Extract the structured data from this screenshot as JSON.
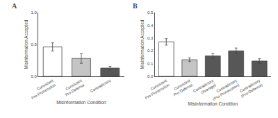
{
  "chart_data": [
    {
      "type": "bar",
      "title": "A",
      "categories": [
        "Consistent\nPro-Prosecution",
        "Consistent\nPro-Defense",
        "Contradictory"
      ],
      "values": [
        0.46,
        0.28,
        0.13
      ],
      "errors": [
        0.065,
        0.075,
        0.028
      ],
      "colors": [
        "#ffffff",
        "#c5c5c5",
        "#575757"
      ],
      "xlabel": "Misinformation Condition",
      "ylabel": "Misinformation Accepted",
      "ylim": [
        0.0,
        1.0
      ],
      "yticks": [
        {
          "value": 0.0,
          "label": "0.0"
        },
        0.5,
        {
          "value": 1.0,
          "label": "1.0"
        }
      ],
      "grid": false
    },
    {
      "type": "bar",
      "title": "B",
      "categories": [
        "Consistent\nPro-Prosecution",
        "Consistent\nPro-Defense",
        "Contradictory\n(Average)",
        "Contradictory\n(Pro-Prosecution)",
        "Contradictory\n(Pro-Defense)"
      ],
      "values": [
        0.27,
        0.13,
        0.16,
        0.2,
        0.12
      ],
      "errors": [
        0.025,
        0.015,
        0.02,
        0.022,
        0.018
      ],
      "colors": [
        "#ffffff",
        "#c5c5c5",
        "#575757",
        "#575757",
        "#575757"
      ],
      "xlabel": "Misinformation Condition",
      "ylabel": "Misinformation Accepted",
      "ylim": [
        0.0,
        0.5
      ],
      "yticks": [
        {
          "value": 0.0,
          "label": "0.0"
        },
        0.1,
        0.2,
        0.3,
        0.4,
        0.5
      ],
      "grid": false
    }
  ]
}
